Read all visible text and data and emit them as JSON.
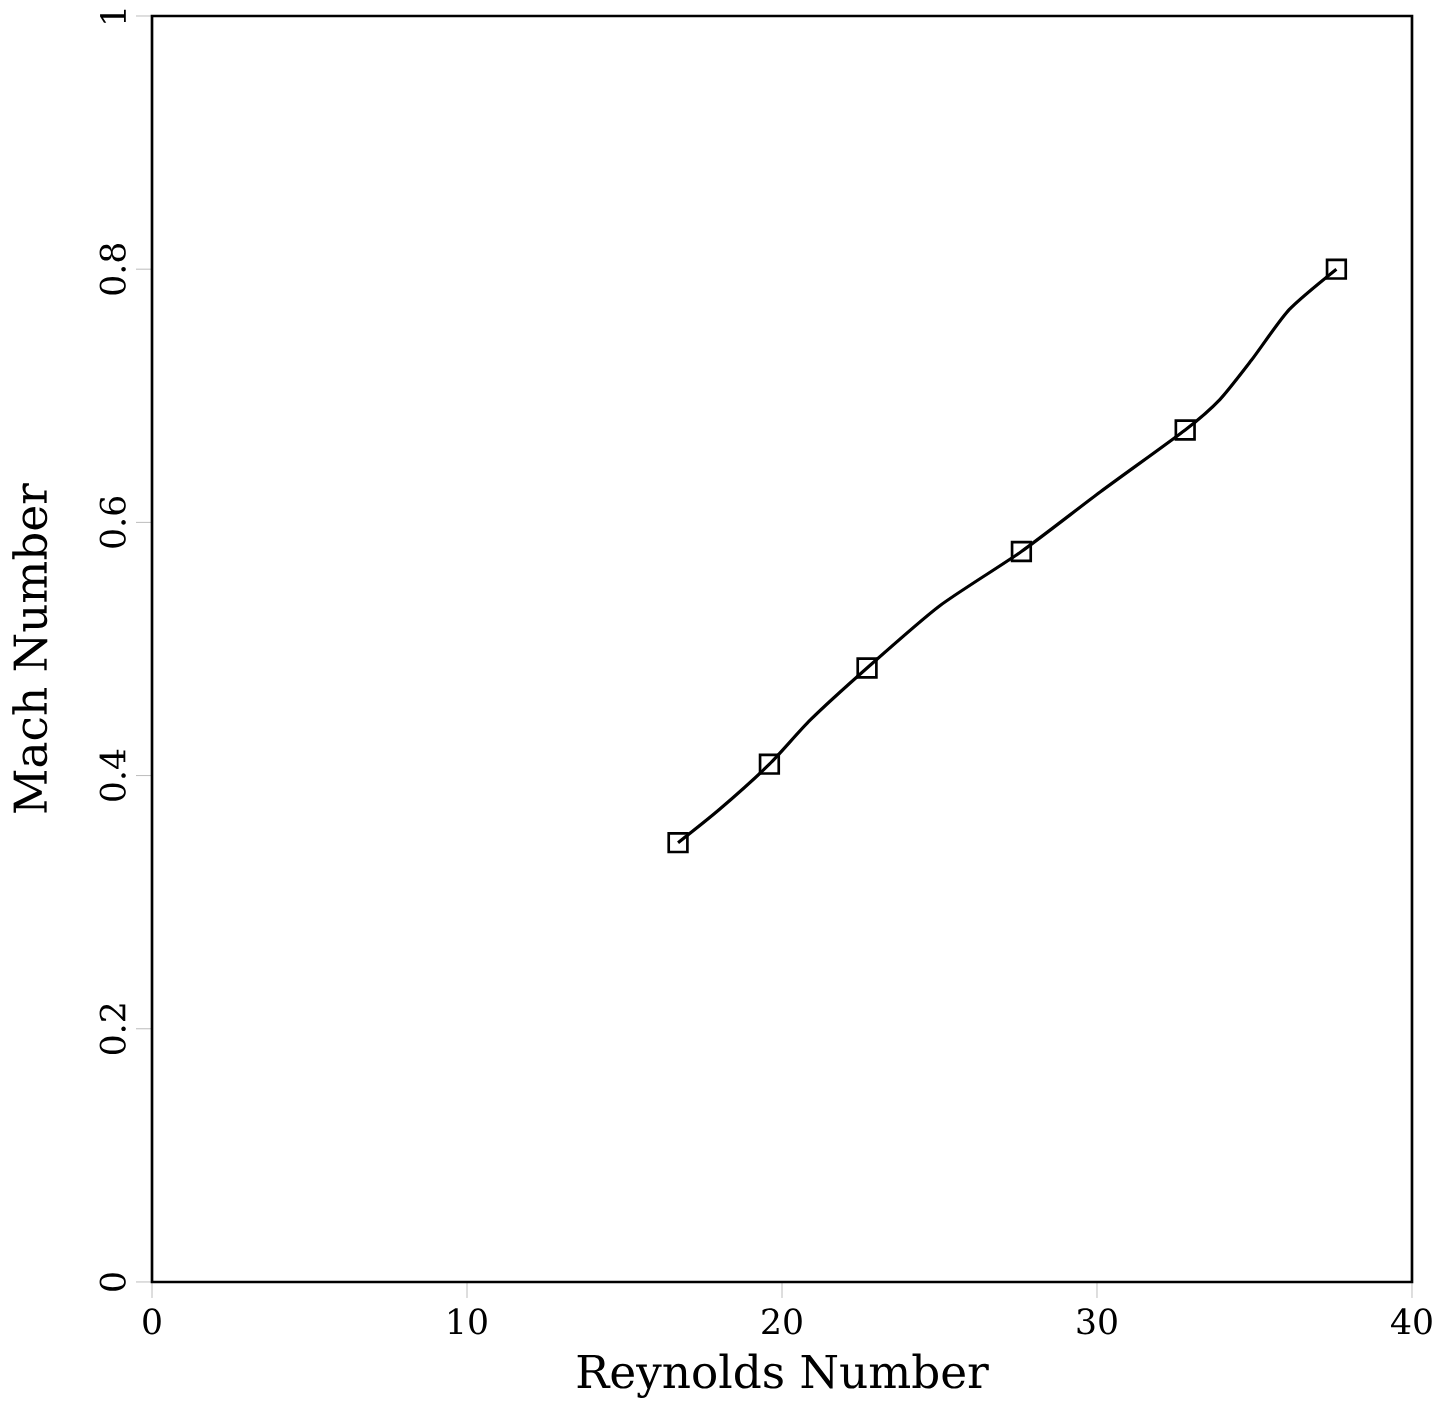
{
  "chart_data": {
    "type": "line",
    "xlabel": "Reynolds Number",
    "ylabel": "Mach Number",
    "xlim": [
      0,
      40
    ],
    "ylim": [
      0,
      1
    ],
    "xticks": [
      0,
      10,
      20,
      30,
      40
    ],
    "yticks": [
      0,
      0.2,
      0.4,
      0.6,
      0.8,
      1
    ],
    "grid": false,
    "series": [
      {
        "color": "#000000",
        "marker": "none",
        "line_style": "solid",
        "x": [
          16.7,
          18.0,
          19.6,
          20.9,
          22.7,
          25.0,
          27.6,
          30.1,
          32.8,
          33.9,
          34.9,
          36.1,
          37.6
        ],
        "values": [
          0.347,
          0.373,
          0.409,
          0.444,
          0.485,
          0.534,
          0.577,
          0.624,
          0.673,
          0.697,
          0.728,
          0.768,
          0.8
        ]
      },
      {
        "type": "scatter",
        "color": "#000000",
        "marker": "square",
        "x": [
          16.7,
          19.6,
          22.7,
          27.6,
          32.8,
          37.6
        ],
        "values": [
          0.347,
          0.409,
          0.485,
          0.577,
          0.673,
          0.8
        ]
      }
    ]
  }
}
